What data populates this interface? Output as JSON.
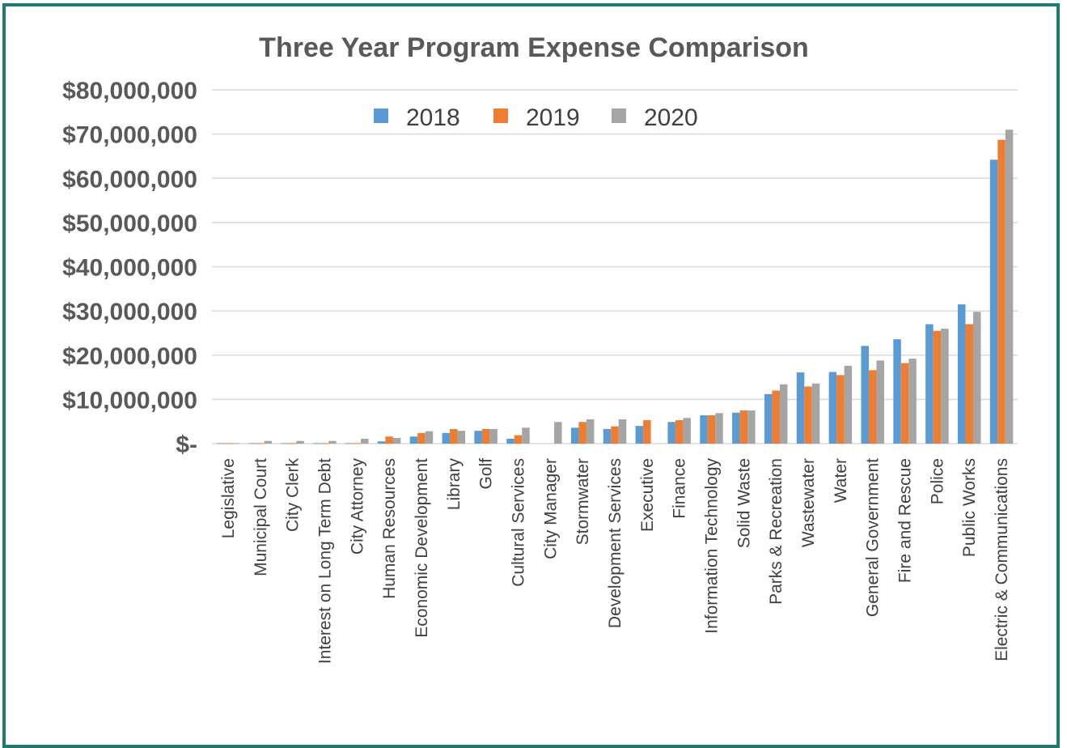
{
  "chart_data": {
    "type": "bar",
    "title": "Three Year Program Expense Comparison",
    "xlabel": "",
    "ylabel": "",
    "ylim": [
      0,
      80000000
    ],
    "yticks": [
      0,
      10000000,
      20000000,
      30000000,
      40000000,
      50000000,
      60000000,
      70000000,
      80000000
    ],
    "ytick_labels": [
      "$-",
      "$10,000,000",
      "$20,000,000",
      "$30,000,000",
      "$40,000,000",
      "$50,000,000",
      "$60,000,000",
      "$70,000,000",
      "$80,000,000"
    ],
    "grid": true,
    "legend_position": "top-center",
    "categories": [
      "Legislative",
      "Municipal Court",
      "City Clerk",
      "Interest on Long Term Debt",
      "City Attorney",
      "Human Resources",
      "Economic Development",
      "Library",
      "Golf",
      "Cultural Services",
      "City Manager",
      "Stormwater",
      "Development Services",
      "Executive",
      "Finance",
      "Information Technology",
      "Solid Waste",
      "Parks & Recreation",
      "Wastewater",
      "Water",
      "General Government",
      "Fire and Rescue",
      "Police",
      "Public Works",
      "Electric & Communications"
    ],
    "series": [
      {
        "name": "2018",
        "color": "#5b9bd5",
        "values": [
          100000,
          100000,
          100000,
          100000,
          100000,
          500000,
          1600000,
          2400000,
          2900000,
          1100000,
          0,
          3600000,
          3300000,
          4000000,
          4900000,
          6400000,
          7000000,
          11200000,
          16100000,
          16200000,
          22100000,
          23600000,
          27000000,
          31500000,
          64200000
        ]
      },
      {
        "name": "2019",
        "color": "#ed7d31",
        "values": [
          100000,
          100000,
          100000,
          100000,
          100000,
          1600000,
          2400000,
          3300000,
          3300000,
          1900000,
          0,
          4900000,
          3900000,
          5300000,
          5300000,
          6400000,
          7500000,
          12000000,
          12900000,
          15500000,
          16600000,
          18200000,
          25500000,
          27000000,
          68700000
        ]
      },
      {
        "name": "2020",
        "color": "#a5a5a5",
        "values": [
          100000,
          600000,
          600000,
          600000,
          1100000,
          1300000,
          2800000,
          2900000,
          3300000,
          3600000,
          4900000,
          5500000,
          5500000,
          0,
          5800000,
          6900000,
          7500000,
          13400000,
          13600000,
          17600000,
          18800000,
          19200000,
          26000000,
          29800000,
          71000000
        ]
      }
    ]
  }
}
